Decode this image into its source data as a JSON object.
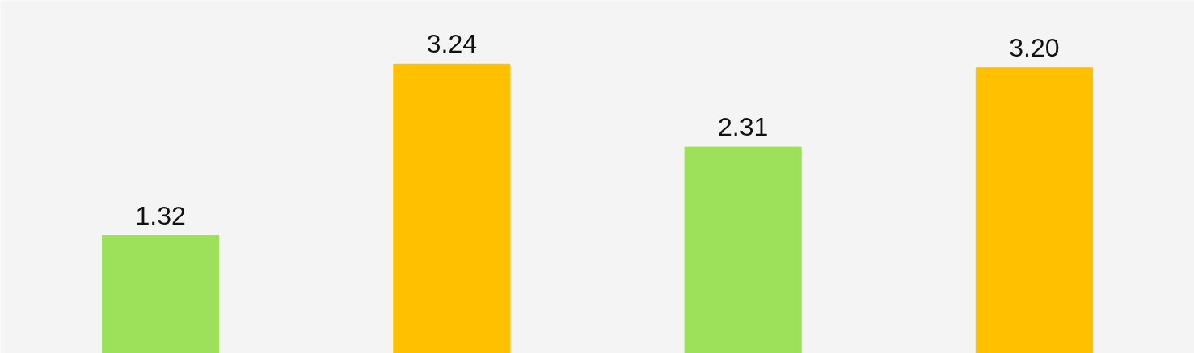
{
  "chart_data": {
    "type": "bar",
    "categories": [
      null,
      null,
      null,
      null
    ],
    "values": [
      1.32,
      3.24,
      2.31,
      3.2
    ],
    "value_labels": [
      "1.32",
      "3.24",
      "2.31",
      "3.20"
    ],
    "colors": [
      "#9de05a",
      "#ffc000",
      "#9de05a",
      "#ffc000"
    ],
    "grid": false
  }
}
